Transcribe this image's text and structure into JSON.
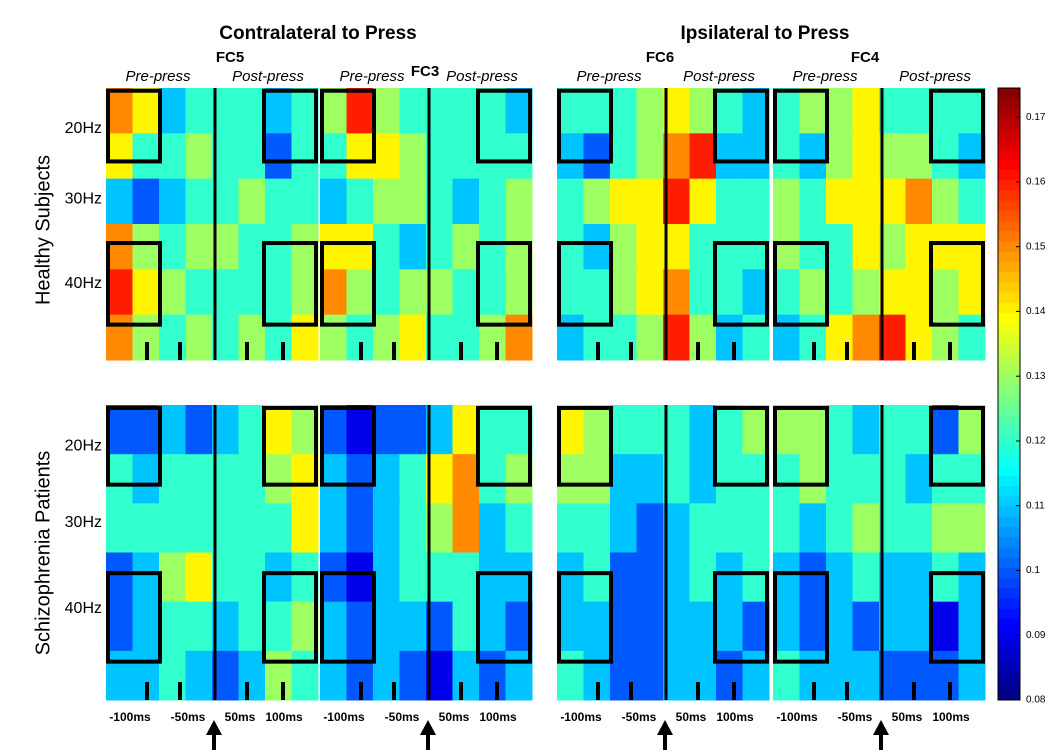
{
  "headers": [
    "Contralateral to Press",
    "Ipsilateral to Press"
  ],
  "row_titles": [
    "Healthy Subjects",
    "Schizophrenia Patients"
  ],
  "channels": [
    "FC5",
    "FC3",
    "FC6",
    "FC4"
  ],
  "window_labels": [
    "Pre-press",
    "Post-press"
  ],
  "freq_labels": [
    "20Hz",
    "30Hz",
    "40Hz"
  ],
  "time_labels": [
    "-100ms",
    "-50ms",
    "50ms",
    "100ms"
  ],
  "colorbar": {
    "lim": [
      0.08,
      0.1745
    ],
    "ticks": [
      0.08,
      0.09,
      0.1,
      0.11,
      0.12,
      0.13,
      0.14,
      0.15,
      0.16,
      0.17
    ]
  },
  "panels": [
    {
      "row": 0,
      "channel": 0,
      "z": [
        [
          0.15,
          0.14,
          0.11,
          0.12,
          0.12,
          0.12,
          0.11,
          0.12
        ],
        [
          0.14,
          0.12,
          0.12,
          0.13,
          0.12,
          0.12,
          0.1,
          0.12
        ],
        [
          0.11,
          0.1,
          0.11,
          0.12,
          0.12,
          0.13,
          0.12,
          0.12
        ],
        [
          0.15,
          0.13,
          0.12,
          0.13,
          0.13,
          0.12,
          0.12,
          0.13
        ],
        [
          0.16,
          0.14,
          0.13,
          0.12,
          0.12,
          0.12,
          0.12,
          0.13
        ],
        [
          0.15,
          0.13,
          0.12,
          0.13,
          0.12,
          0.13,
          0.12,
          0.14
        ]
      ]
    },
    {
      "row": 0,
      "channel": 1,
      "z": [
        [
          0.13,
          0.16,
          0.13,
          0.12,
          0.12,
          0.12,
          0.12,
          0.11
        ],
        [
          0.12,
          0.14,
          0.14,
          0.13,
          0.12,
          0.12,
          0.12,
          0.12
        ],
        [
          0.11,
          0.12,
          0.13,
          0.13,
          0.12,
          0.11,
          0.12,
          0.13
        ],
        [
          0.14,
          0.14,
          0.12,
          0.11,
          0.12,
          0.13,
          0.12,
          0.13
        ],
        [
          0.15,
          0.13,
          0.12,
          0.13,
          0.13,
          0.12,
          0.12,
          0.13
        ],
        [
          0.13,
          0.12,
          0.13,
          0.14,
          0.12,
          0.12,
          0.13,
          0.15
        ]
      ]
    },
    {
      "row": 0,
      "channel": 2,
      "z": [
        [
          0.12,
          0.12,
          0.12,
          0.13,
          0.14,
          0.13,
          0.12,
          0.11
        ],
        [
          0.11,
          0.1,
          0.12,
          0.13,
          0.15,
          0.16,
          0.11,
          0.11
        ],
        [
          0.12,
          0.13,
          0.14,
          0.14,
          0.16,
          0.14,
          0.12,
          0.12
        ],
        [
          0.12,
          0.11,
          0.13,
          0.14,
          0.14,
          0.12,
          0.12,
          0.12
        ],
        [
          0.12,
          0.12,
          0.13,
          0.14,
          0.15,
          0.12,
          0.12,
          0.11
        ],
        [
          0.11,
          0.12,
          0.12,
          0.13,
          0.16,
          0.13,
          0.11,
          0.12
        ]
      ]
    },
    {
      "row": 0,
      "channel": 3,
      "z": [
        [
          0.12,
          0.13,
          0.13,
          0.14,
          0.12,
          0.12,
          0.12,
          0.12
        ],
        [
          0.12,
          0.11,
          0.13,
          0.14,
          0.13,
          0.13,
          0.12,
          0.11
        ],
        [
          0.13,
          0.12,
          0.14,
          0.14,
          0.14,
          0.15,
          0.13,
          0.12
        ],
        [
          0.13,
          0.12,
          0.12,
          0.14,
          0.13,
          0.14,
          0.14,
          0.14
        ],
        [
          0.12,
          0.13,
          0.12,
          0.13,
          0.14,
          0.14,
          0.13,
          0.14
        ],
        [
          0.11,
          0.12,
          0.14,
          0.15,
          0.16,
          0.14,
          0.13,
          0.12
        ]
      ]
    },
    {
      "row": 1,
      "channel": 0,
      "z": [
        [
          0.1,
          0.1,
          0.11,
          0.1,
          0.11,
          0.12,
          0.14,
          0.13
        ],
        [
          0.12,
          0.11,
          0.12,
          0.12,
          0.12,
          0.12,
          0.13,
          0.14
        ],
        [
          0.12,
          0.12,
          0.12,
          0.12,
          0.12,
          0.12,
          0.12,
          0.14
        ],
        [
          0.1,
          0.11,
          0.13,
          0.14,
          0.12,
          0.12,
          0.11,
          0.12
        ],
        [
          0.1,
          0.11,
          0.12,
          0.12,
          0.11,
          0.12,
          0.12,
          0.13
        ],
        [
          0.11,
          0.11,
          0.12,
          0.11,
          0.1,
          0.11,
          0.13,
          0.12
        ]
      ]
    },
    {
      "row": 1,
      "channel": 1,
      "z": [
        [
          0.1,
          0.09,
          0.1,
          0.1,
          0.11,
          0.14,
          0.12,
          0.12
        ],
        [
          0.11,
          0.1,
          0.11,
          0.12,
          0.14,
          0.15,
          0.12,
          0.13
        ],
        [
          0.11,
          0.1,
          0.11,
          0.12,
          0.13,
          0.15,
          0.11,
          0.12
        ],
        [
          0.1,
          0.09,
          0.11,
          0.12,
          0.12,
          0.12,
          0.11,
          0.11
        ],
        [
          0.11,
          0.1,
          0.11,
          0.11,
          0.1,
          0.12,
          0.11,
          0.1
        ],
        [
          0.11,
          0.1,
          0.11,
          0.1,
          0.09,
          0.11,
          0.1,
          0.11
        ]
      ]
    },
    {
      "row": 1,
      "channel": 2,
      "z": [
        [
          0.14,
          0.13,
          0.12,
          0.12,
          0.12,
          0.11,
          0.12,
          0.13
        ],
        [
          0.13,
          0.13,
          0.11,
          0.11,
          0.12,
          0.11,
          0.12,
          0.12
        ],
        [
          0.12,
          0.12,
          0.11,
          0.1,
          0.11,
          0.12,
          0.12,
          0.12
        ],
        [
          0.11,
          0.12,
          0.1,
          0.1,
          0.11,
          0.12,
          0.11,
          0.12
        ],
        [
          0.11,
          0.11,
          0.1,
          0.1,
          0.11,
          0.11,
          0.11,
          0.1
        ],
        [
          0.12,
          0.11,
          0.1,
          0.1,
          0.11,
          0.11,
          0.1,
          0.11
        ]
      ]
    },
    {
      "row": 1,
      "channel": 3,
      "z": [
        [
          0.13,
          0.13,
          0.12,
          0.11,
          0.12,
          0.12,
          0.1,
          0.13
        ],
        [
          0.12,
          0.13,
          0.12,
          0.12,
          0.12,
          0.11,
          0.12,
          0.12
        ],
        [
          0.12,
          0.11,
          0.12,
          0.13,
          0.12,
          0.12,
          0.13,
          0.13
        ],
        [
          0.11,
          0.1,
          0.11,
          0.12,
          0.11,
          0.11,
          0.12,
          0.11
        ],
        [
          0.11,
          0.1,
          0.11,
          0.1,
          0.11,
          0.11,
          0.09,
          0.11
        ],
        [
          0.12,
          0.11,
          0.11,
          0.11,
          0.1,
          0.1,
          0.1,
          0.11
        ]
      ]
    }
  ]
}
